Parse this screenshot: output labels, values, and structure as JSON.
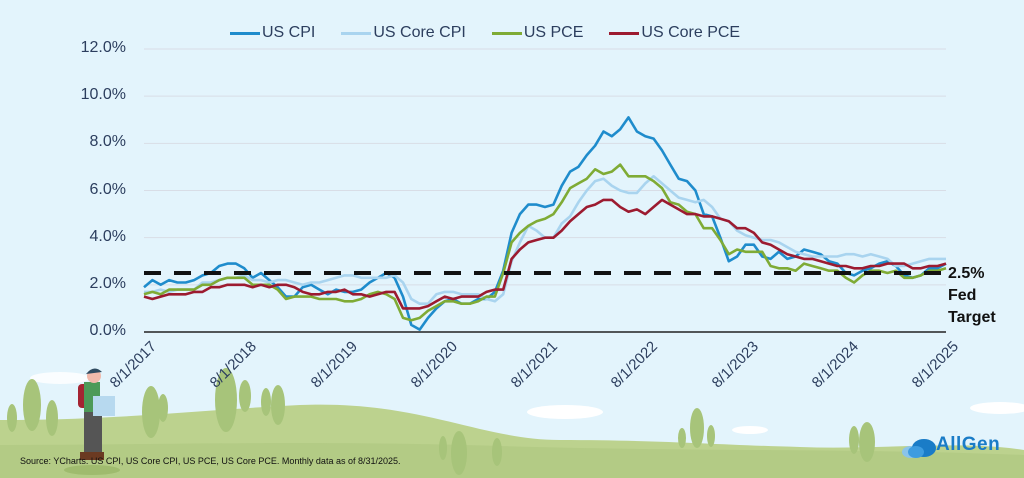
{
  "chart_data": {
    "type": "line",
    "title": "",
    "xlabel": "",
    "ylabel": "",
    "ylim": [
      0,
      12
    ],
    "yticks": [
      "0.0%",
      "2.0%",
      "4.0%",
      "6.0%",
      "8.0%",
      "10.0%",
      "12.0%"
    ],
    "ytick_values": [
      0,
      2,
      4,
      6,
      8,
      10,
      12
    ],
    "xticks": [
      "8/1/2017",
      "8/1/2018",
      "8/1/2019",
      "8/1/2020",
      "8/1/2021",
      "8/1/2022",
      "8/1/2023",
      "8/1/2024",
      "8/1/2025"
    ],
    "x_start": "2017-08",
    "x_end": "2025-08",
    "frequency": "monthly",
    "grid": true,
    "legend_position": "top-center",
    "reference_line": {
      "value": 2.5,
      "label_lines": [
        "2.5%",
        "Fed",
        "Target"
      ],
      "style": "dashed"
    },
    "series": [
      {
        "name": "US CPI",
        "color": "#1f8ccc",
        "values": [
          1.9,
          2.2,
          2.0,
          2.2,
          2.1,
          2.1,
          2.2,
          2.4,
          2.5,
          2.8,
          2.9,
          2.9,
          2.7,
          2.3,
          2.5,
          2.2,
          1.9,
          1.5,
          1.5,
          1.9,
          2.0,
          1.8,
          1.6,
          1.8,
          1.7,
          1.7,
          1.8,
          2.1,
          2.3,
          2.5,
          2.3,
          1.5,
          0.3,
          0.1,
          0.6,
          1.0,
          1.3,
          1.4,
          1.2,
          1.2,
          1.4,
          1.4,
          1.7,
          2.6,
          4.2,
          5.0,
          5.4,
          5.4,
          5.3,
          5.4,
          6.2,
          6.8,
          7.0,
          7.5,
          7.9,
          8.5,
          8.3,
          8.6,
          9.1,
          8.5,
          8.3,
          8.2,
          7.7,
          7.1,
          6.5,
          6.4,
          6.0,
          5.0,
          4.9,
          4.0,
          3.0,
          3.2,
          3.7,
          3.7,
          3.2,
          3.1,
          3.4,
          3.1,
          3.2,
          3.5,
          3.4,
          3.3,
          3.0,
          2.9,
          2.5,
          2.4,
          2.6,
          2.7,
          2.9,
          3.0,
          2.8,
          2.4,
          2.3,
          2.4,
          2.7,
          2.7,
          2.9
        ]
      },
      {
        "name": "US Core CPI",
        "color": "#a9d4ef",
        "values": [
          1.7,
          1.7,
          1.8,
          1.7,
          1.8,
          1.8,
          1.8,
          2.1,
          2.1,
          2.2,
          2.3,
          2.3,
          2.4,
          2.2,
          2.2,
          2.1,
          2.2,
          2.2,
          2.1,
          2.0,
          2.1,
          2.1,
          2.2,
          2.3,
          2.4,
          2.4,
          2.3,
          2.3,
          2.3,
          2.3,
          2.4,
          2.1,
          1.4,
          1.2,
          1.2,
          1.6,
          1.7,
          1.7,
          1.6,
          1.6,
          1.6,
          1.4,
          1.3,
          1.6,
          3.0,
          3.8,
          4.5,
          4.3,
          4.0,
          4.0,
          4.6,
          4.9,
          5.5,
          6.0,
          6.4,
          6.5,
          6.2,
          6.0,
          5.9,
          5.9,
          6.3,
          6.6,
          6.3,
          6.0,
          5.7,
          5.6,
          5.5,
          5.6,
          5.3,
          4.8,
          4.7,
          4.3,
          4.1,
          4.0,
          3.9,
          3.9,
          3.8,
          3.6,
          3.4,
          3.3,
          3.2,
          3.2,
          3.2,
          3.2,
          3.3,
          3.3,
          3.2,
          3.3,
          3.2,
          3.1,
          2.8,
          2.8,
          2.9,
          3.0,
          3.1,
          3.1,
          3.1
        ]
      },
      {
        "name": "US PCE",
        "color": "#7fab35",
        "values": [
          1.6,
          1.7,
          1.6,
          1.8,
          1.8,
          1.8,
          1.8,
          2.0,
          2.0,
          2.2,
          2.3,
          2.3,
          2.3,
          2.0,
          2.0,
          2.0,
          1.8,
          1.4,
          1.5,
          1.5,
          1.5,
          1.4,
          1.4,
          1.4,
          1.3,
          1.3,
          1.4,
          1.6,
          1.7,
          1.6,
          1.4,
          0.6,
          0.5,
          0.6,
          0.9,
          1.1,
          1.3,
          1.3,
          1.2,
          1.2,
          1.3,
          1.5,
          1.5,
          2.5,
          3.8,
          4.2,
          4.5,
          4.7,
          4.8,
          5.0,
          5.5,
          6.1,
          6.3,
          6.5,
          6.9,
          6.7,
          6.8,
          7.1,
          6.6,
          6.6,
          6.6,
          6.4,
          6.1,
          5.5,
          5.4,
          5.1,
          5.0,
          4.4,
          4.4,
          3.9,
          3.3,
          3.5,
          3.4,
          3.4,
          3.4,
          2.8,
          2.7,
          2.7,
          2.6,
          2.9,
          2.8,
          2.7,
          2.6,
          2.6,
          2.3,
          2.1,
          2.4,
          2.6,
          2.6,
          2.5,
          2.6,
          2.3,
          2.3,
          2.4,
          2.6,
          2.6,
          2.7
        ]
      },
      {
        "name": "US Core PCE",
        "color": "#9c1b30",
        "values": [
          1.5,
          1.4,
          1.5,
          1.6,
          1.6,
          1.6,
          1.7,
          1.7,
          1.9,
          1.9,
          2.0,
          2.0,
          2.0,
          1.9,
          2.0,
          1.9,
          2.0,
          2.0,
          1.9,
          1.7,
          1.6,
          1.6,
          1.7,
          1.7,
          1.8,
          1.6,
          1.6,
          1.5,
          1.6,
          1.7,
          1.7,
          1.0,
          1.0,
          1.0,
          1.1,
          1.3,
          1.5,
          1.4,
          1.5,
          1.5,
          1.5,
          1.7,
          1.8,
          1.8,
          3.1,
          3.5,
          3.8,
          3.9,
          4.0,
          4.0,
          4.3,
          4.7,
          5.0,
          5.3,
          5.4,
          5.6,
          5.6,
          5.3,
          5.1,
          5.2,
          5.0,
          5.3,
          5.6,
          5.4,
          5.2,
          5.0,
          5.0,
          4.9,
          4.9,
          4.8,
          4.7,
          4.4,
          4.4,
          4.2,
          3.8,
          3.7,
          3.5,
          3.3,
          3.2,
          3.1,
          3.1,
          3.0,
          2.9,
          2.8,
          2.8,
          2.7,
          2.7,
          2.8,
          2.8,
          2.9,
          2.9,
          2.9,
          2.7,
          2.7,
          2.8,
          2.8,
          2.9
        ]
      }
    ]
  },
  "footer": {
    "source": "Source: YCharts. US CPI, US Core CPI, US PCE, US Core PCE. Monthly data as of 8/31/2025.",
    "brand": "AllGen"
  }
}
